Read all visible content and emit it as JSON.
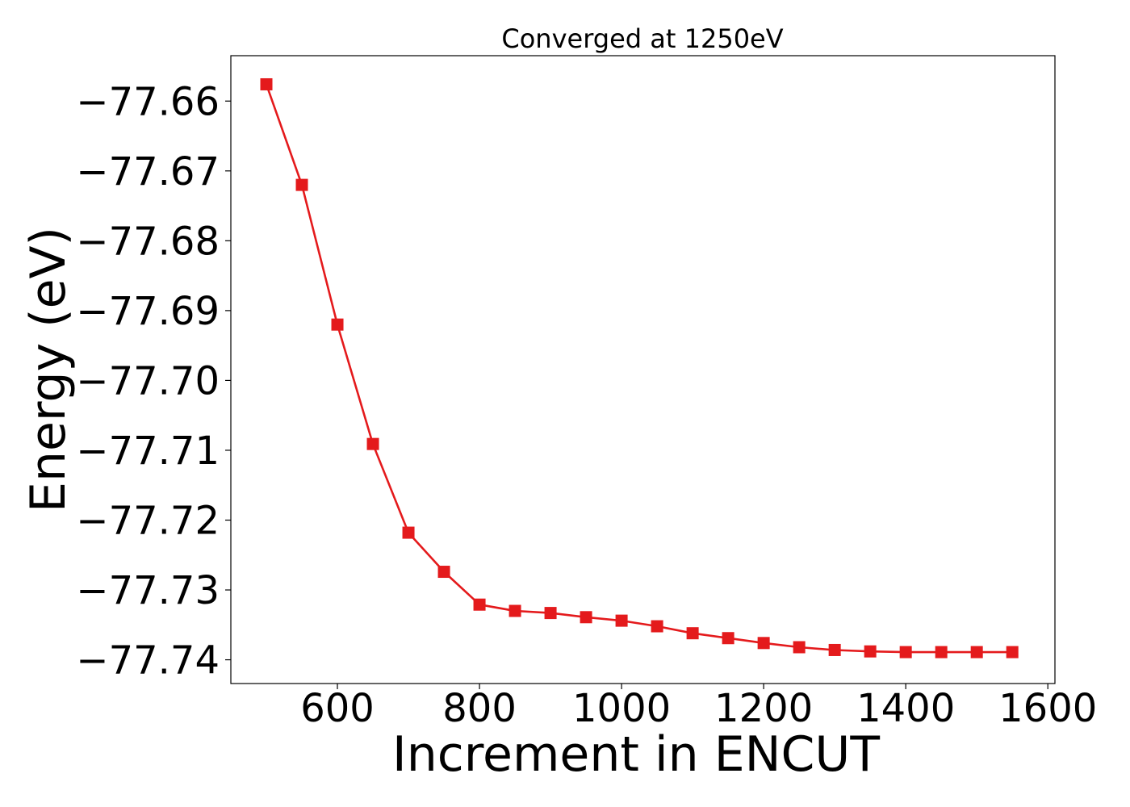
{
  "chart_data": {
    "type": "line",
    "title": "Converged at 1250eV",
    "xlabel": "Increment in ENCUT",
    "ylabel": "Energy (eV)",
    "xlim": [
      450,
      1610
    ],
    "ylim": [
      -77.7434,
      -77.6535
    ],
    "x_ticks": [
      600,
      800,
      1000,
      1200,
      1400,
      1600
    ],
    "x_tick_labels": [
      "600",
      "800",
      "1000",
      "1200",
      "1400",
      "1600"
    ],
    "y_ticks": [
      -77.66,
      -77.67,
      -77.68,
      -77.69,
      -77.7,
      -77.71,
      -77.72,
      -77.73,
      -77.74
    ],
    "y_tick_labels": [
      "−77.66",
      "−77.67",
      "−77.68",
      "−77.69",
      "−77.70",
      "−77.71",
      "−77.72",
      "−77.73",
      "−77.74"
    ],
    "grid": false,
    "series": [
      {
        "color": "#e41a1c",
        "marker": "square",
        "x": [
          500,
          550,
          600,
          650,
          700,
          750,
          800,
          850,
          900,
          950,
          1000,
          1050,
          1100,
          1150,
          1200,
          1250,
          1300,
          1350,
          1400,
          1450,
          1500,
          1550
        ],
        "y": [
          -77.6576,
          -77.672,
          -77.692,
          -77.7091,
          -77.7218,
          -77.7274,
          -77.7321,
          -77.733,
          -77.7333,
          -77.7339,
          -77.7344,
          -77.7352,
          -77.7362,
          -77.7369,
          -77.7376,
          -77.7382,
          -77.7386,
          -77.7388,
          -77.7389,
          -77.7389,
          -77.7389,
          -77.7389
        ]
      }
    ]
  }
}
